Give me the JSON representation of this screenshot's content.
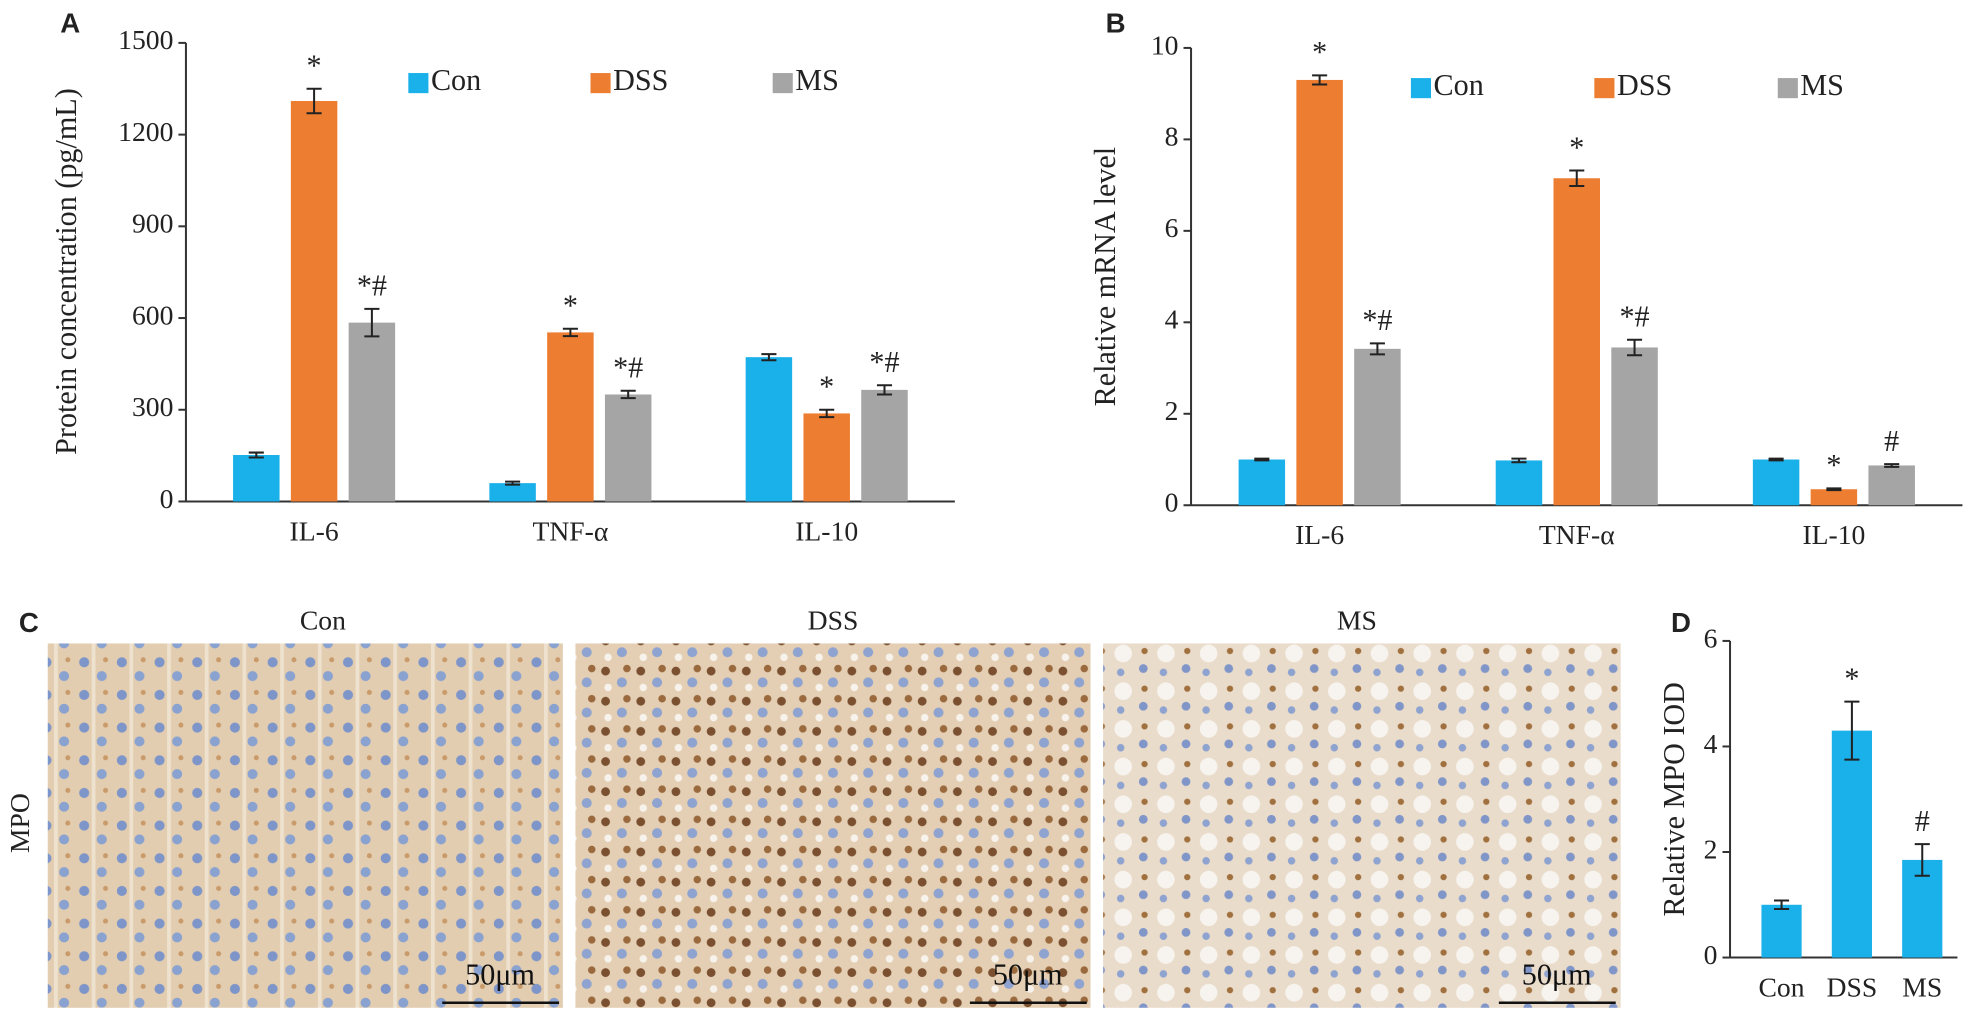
{
  "chart_data": [
    {
      "type": "bar",
      "panel_label": "A",
      "ylabel": "Protein concentration (pg/mL)",
      "categories": [
        "IL-6",
        "TNF-α",
        "IL-10"
      ],
      "series": [
        {
          "name": "Con",
          "color": "#1ab0ea",
          "values": [
            152,
            60,
            472
          ],
          "errors": [
            8,
            5,
            10
          ],
          "annotations": [
            null,
            null,
            null
          ]
        },
        {
          "name": "DSS",
          "color": "#ed7d31",
          "values": [
            1310,
            553,
            288
          ],
          "errors": [
            40,
            12,
            12
          ],
          "annotations": [
            "*",
            "*",
            "*"
          ]
        },
        {
          "name": "MS",
          "color": "#a5a5a5",
          "values": [
            585,
            350,
            365
          ],
          "errors": [
            45,
            12,
            15
          ],
          "annotations": [
            "*#",
            "*#",
            "*#"
          ]
        }
      ],
      "ylim": [
        0,
        1500
      ],
      "yticks": [
        0,
        300,
        600,
        900,
        1200,
        1500
      ],
      "legend": "top"
    },
    {
      "type": "bar",
      "panel_label": "B",
      "ylabel": "Relative mRNA level",
      "categories": [
        "IL-6",
        "TNF-α",
        "IL-10"
      ],
      "series": [
        {
          "name": "Con",
          "color": "#1ab0ea",
          "values": [
            1.0,
            0.98,
            1.0
          ],
          "errors": [
            0.02,
            0.04,
            0.02
          ],
          "annotations": [
            null,
            null,
            null
          ]
        },
        {
          "name": "DSS",
          "color": "#ed7d31",
          "values": [
            9.3,
            7.15,
            0.35
          ],
          "errors": [
            0.1,
            0.17,
            0.02
          ],
          "annotations": [
            "*",
            "*",
            "*"
          ]
        },
        {
          "name": "MS",
          "color": "#a5a5a5",
          "values": [
            3.42,
            3.45,
            0.87
          ],
          "errors": [
            0.12,
            0.17,
            0.03
          ],
          "annotations": [
            "*#",
            "*#",
            "#"
          ]
        }
      ],
      "ylim": [
        0,
        10
      ],
      "yticks": [
        0,
        2,
        4,
        6,
        8,
        10
      ],
      "legend": "top"
    },
    {
      "type": "bar",
      "panel_label": "D",
      "ylabel": "Relative MPO IOD",
      "categories": [
        "Con",
        "DSS",
        "MS"
      ],
      "values": [
        1.0,
        4.3,
        1.85
      ],
      "errors": [
        0.08,
        0.55,
        0.3
      ],
      "annotations": [
        null,
        "*",
        "#"
      ],
      "color": "#1ab0ea",
      "ylim": [
        0,
        6
      ],
      "yticks": [
        0,
        2,
        4,
        6
      ]
    }
  ],
  "panel_c": {
    "label": "C",
    "row_label": "MPO",
    "columns": [
      "Con",
      "DSS",
      "MS"
    ],
    "scale_bars": [
      "50μm",
      "50μm",
      "50μm"
    ]
  }
}
